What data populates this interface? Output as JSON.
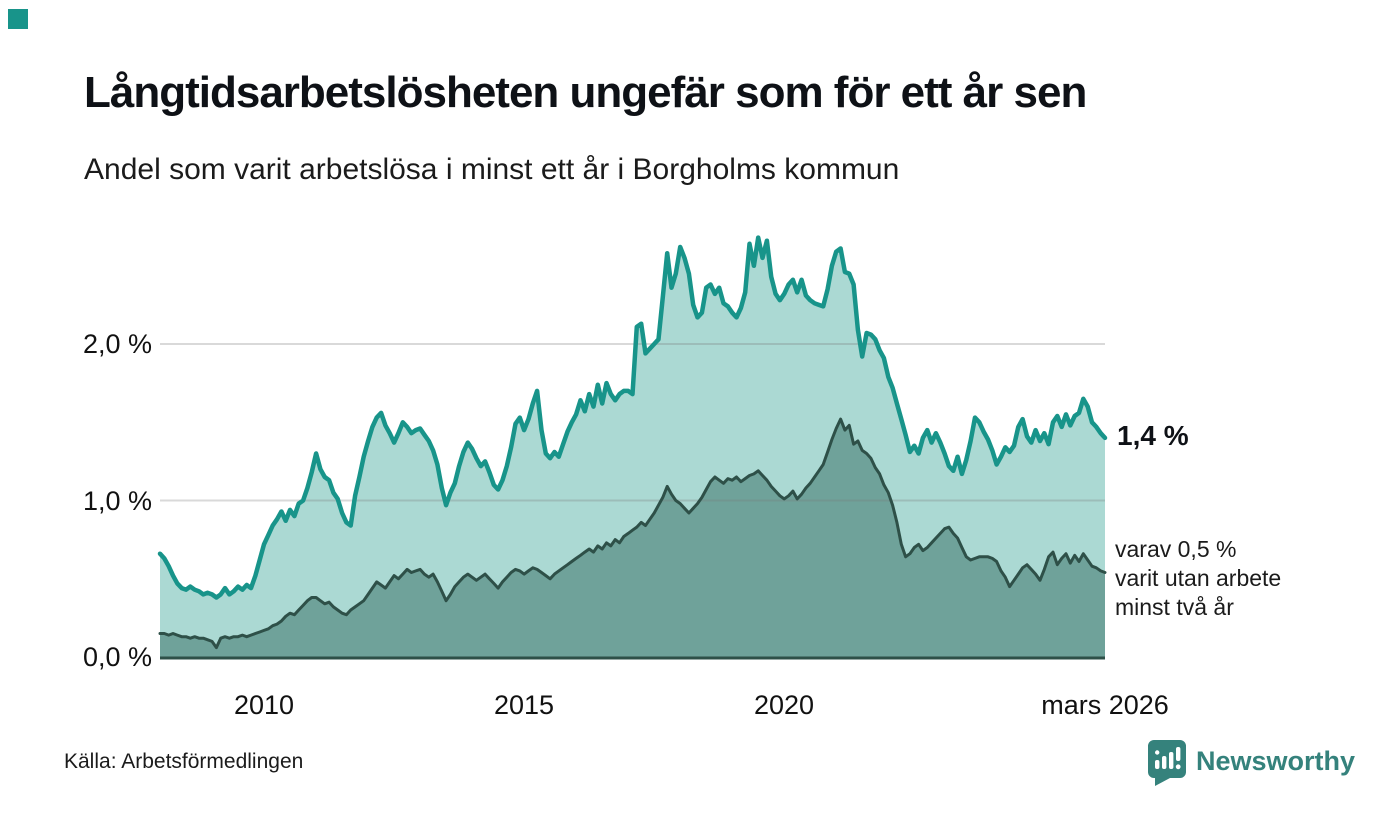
{
  "header": {
    "title": "Långtidsarbetslösheten ungefär som för ett år sen",
    "subtitle": "Andel som varit arbetslösa i minst ett år i Borgholms kommun"
  },
  "colors": {
    "brand_teal": "#18948a",
    "light_fill": "#abd9d3",
    "dark_line": "#2e5048",
    "dark_fill": "#6fa29a",
    "gridline": "#d6d6d6",
    "logo_teal": "#35827c"
  },
  "chart_data": {
    "type": "area",
    "title": "Långtidsarbetslösheten ungefär som för ett år sen",
    "subtitle": "Andel som varit arbetslösa i minst ett år i Borgholms kommun",
    "unit": "%",
    "x_start": "2008-01",
    "x_end": "2026-03",
    "x_start_year": 2008.0,
    "x_end_year": 2026.1667,
    "ylim": [
      0,
      2.73
    ],
    "grid": true,
    "x_ticks": [
      {
        "label": "2010",
        "year": 2010
      },
      {
        "label": "2015",
        "year": 2015
      },
      {
        "label": "2020",
        "year": 2020
      },
      {
        "label": "mars 2026",
        "year": 2026.1667
      }
    ],
    "y_ticks": [
      {
        "label": "2,0 %",
        "value": 2.0
      },
      {
        "label": "1,0 %",
        "value": 1.0
      },
      {
        "label": "0,0 %",
        "value": 0.0
      }
    ],
    "series": [
      {
        "name": "Andel arbetslösa minst ett år",
        "color": "#18948a",
        "fill": "#abd9d3",
        "stroke_width": 4.5,
        "last_value_label": "1,4 %",
        "values": [
          0.66,
          0.63,
          0.58,
          0.52,
          0.47,
          0.44,
          0.43,
          0.45,
          0.43,
          0.42,
          0.4,
          0.41,
          0.4,
          0.38,
          0.4,
          0.44,
          0.4,
          0.42,
          0.45,
          0.43,
          0.46,
          0.44,
          0.52,
          0.62,
          0.72,
          0.78,
          0.84,
          0.88,
          0.93,
          0.87,
          0.94,
          0.9,
          0.98,
          1.0,
          1.08,
          1.18,
          1.3,
          1.2,
          1.15,
          1.13,
          1.05,
          1.01,
          0.92,
          0.86,
          0.84,
          1.03,
          1.15,
          1.28,
          1.38,
          1.47,
          1.53,
          1.56,
          1.48,
          1.43,
          1.37,
          1.43,
          1.5,
          1.47,
          1.43,
          1.45,
          1.46,
          1.42,
          1.38,
          1.32,
          1.23,
          1.08,
          0.97,
          1.05,
          1.11,
          1.22,
          1.31,
          1.37,
          1.33,
          1.27,
          1.22,
          1.25,
          1.18,
          1.1,
          1.07,
          1.13,
          1.22,
          1.34,
          1.49,
          1.53,
          1.45,
          1.52,
          1.62,
          1.7,
          1.45,
          1.3,
          1.27,
          1.31,
          1.28,
          1.36,
          1.44,
          1.5,
          1.55,
          1.64,
          1.57,
          1.68,
          1.6,
          1.74,
          1.62,
          1.75,
          1.68,
          1.64,
          1.68,
          1.7,
          1.7,
          1.68,
          2.11,
          2.13,
          1.94,
          1.97,
          2.0,
          2.03,
          2.3,
          2.58,
          2.36,
          2.45,
          2.62,
          2.55,
          2.45,
          2.25,
          2.17,
          2.2,
          2.36,
          2.38,
          2.32,
          2.36,
          2.26,
          2.24,
          2.2,
          2.17,
          2.23,
          2.33,
          2.64,
          2.5,
          2.68,
          2.55,
          2.66,
          2.43,
          2.32,
          2.28,
          2.32,
          2.38,
          2.41,
          2.33,
          2.41,
          2.31,
          2.28,
          2.26,
          2.25,
          2.24,
          2.35,
          2.5,
          2.59,
          2.61,
          2.46,
          2.45,
          2.38,
          2.09,
          1.92,
          2.07,
          2.06,
          2.03,
          1.96,
          1.91,
          1.79,
          1.72,
          1.62,
          1.52,
          1.42,
          1.31,
          1.35,
          1.3,
          1.4,
          1.45,
          1.37,
          1.43,
          1.37,
          1.3,
          1.22,
          1.19,
          1.28,
          1.17,
          1.26,
          1.38,
          1.53,
          1.5,
          1.44,
          1.39,
          1.32,
          1.23,
          1.28,
          1.34,
          1.31,
          1.35,
          1.47,
          1.52,
          1.41,
          1.37,
          1.45,
          1.38,
          1.43,
          1.36,
          1.5,
          1.54,
          1.47,
          1.55,
          1.48,
          1.54,
          1.56,
          1.65,
          1.6,
          1.5,
          1.47,
          1.43,
          1.4
        ]
      },
      {
        "name": "varav utan arbete minst två år",
        "color": "#2e5048",
        "fill": "#6fa29a",
        "stroke_width": 3,
        "last_value_label": "varav 0,5 %",
        "values": [
          0.15,
          0.15,
          0.14,
          0.15,
          0.14,
          0.13,
          0.13,
          0.12,
          0.13,
          0.12,
          0.12,
          0.11,
          0.1,
          0.06,
          0.12,
          0.13,
          0.12,
          0.13,
          0.13,
          0.14,
          0.13,
          0.14,
          0.15,
          0.16,
          0.17,
          0.18,
          0.2,
          0.21,
          0.23,
          0.26,
          0.28,
          0.27,
          0.3,
          0.33,
          0.36,
          0.38,
          0.38,
          0.36,
          0.34,
          0.35,
          0.32,
          0.3,
          0.28,
          0.27,
          0.3,
          0.32,
          0.34,
          0.36,
          0.4,
          0.44,
          0.48,
          0.46,
          0.44,
          0.48,
          0.52,
          0.5,
          0.53,
          0.56,
          0.54,
          0.55,
          0.56,
          0.53,
          0.51,
          0.53,
          0.48,
          0.42,
          0.36,
          0.4,
          0.45,
          0.48,
          0.51,
          0.53,
          0.51,
          0.49,
          0.51,
          0.53,
          0.5,
          0.47,
          0.44,
          0.48,
          0.51,
          0.54,
          0.56,
          0.55,
          0.53,
          0.55,
          0.57,
          0.56,
          0.54,
          0.52,
          0.5,
          0.53,
          0.55,
          0.57,
          0.59,
          0.61,
          0.63,
          0.65,
          0.67,
          0.69,
          0.67,
          0.71,
          0.69,
          0.73,
          0.71,
          0.75,
          0.73,
          0.77,
          0.79,
          0.81,
          0.83,
          0.86,
          0.84,
          0.88,
          0.92,
          0.97,
          1.02,
          1.09,
          1.04,
          1.0,
          0.98,
          0.95,
          0.92,
          0.95,
          0.98,
          1.02,
          1.07,
          1.12,
          1.15,
          1.13,
          1.11,
          1.14,
          1.13,
          1.15,
          1.12,
          1.14,
          1.16,
          1.17,
          1.19,
          1.16,
          1.13,
          1.09,
          1.06,
          1.03,
          1.01,
          1.03,
          1.06,
          1.01,
          1.04,
          1.08,
          1.11,
          1.15,
          1.19,
          1.23,
          1.31,
          1.39,
          1.46,
          1.52,
          1.45,
          1.48,
          1.36,
          1.38,
          1.32,
          1.3,
          1.27,
          1.21,
          1.17,
          1.1,
          1.05,
          0.97,
          0.86,
          0.72,
          0.64,
          0.66,
          0.7,
          0.72,
          0.68,
          0.7,
          0.73,
          0.76,
          0.79,
          0.82,
          0.83,
          0.79,
          0.76,
          0.7,
          0.64,
          0.62,
          0.63,
          0.64,
          0.64,
          0.64,
          0.63,
          0.61,
          0.55,
          0.51,
          0.45,
          0.49,
          0.53,
          0.57,
          0.59,
          0.56,
          0.53,
          0.49,
          0.56,
          0.64,
          0.67,
          0.59,
          0.63,
          0.66,
          0.6,
          0.65,
          0.61,
          0.66,
          0.62,
          0.58,
          0.57,
          0.55,
          0.54
        ]
      }
    ],
    "end_labels": {
      "primary": "1,4 %",
      "secondary": "varav 0,5 %\nvarit utan arbete\nminst två år"
    },
    "legend_position": "right-of-line"
  },
  "footer": {
    "source": "Källa: Arbetsförmedlingen",
    "logo_text": "Newsworthy"
  }
}
